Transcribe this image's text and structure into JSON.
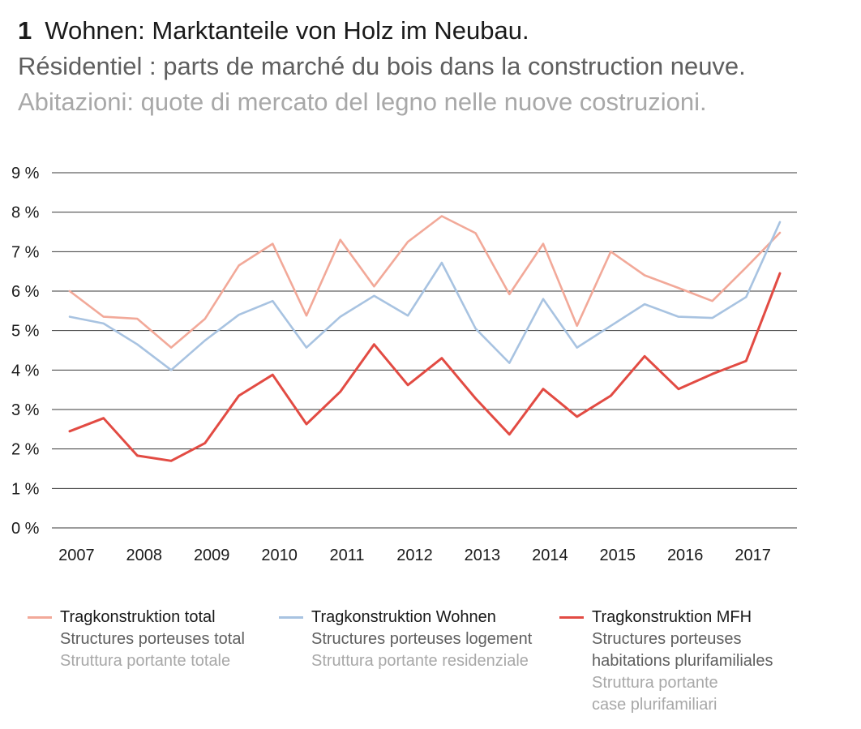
{
  "title": {
    "number": "1",
    "de": "Wohnen: Marktanteile von Holz im Neubau.",
    "fr": "Résidentiel : parts de marché du bois dans la construction neuve.",
    "it": "Abitazioni: quote di mercato del legno nelle nuove costruzioni."
  },
  "chart_data": {
    "type": "line",
    "ylim": [
      0,
      9
    ],
    "yticks": [
      "0 %",
      "1 %",
      "2 %",
      "3 %",
      "4 %",
      "5 %",
      "6 %",
      "7 %",
      "8 %",
      "9 %"
    ],
    "xticks": [
      "2007",
      "2008",
      "2009",
      "2010",
      "2011",
      "2012",
      "2013",
      "2014",
      "2015",
      "2016",
      "2017"
    ],
    "x": [
      2007.0,
      2007.5,
      2008.0,
      2008.5,
      2009.0,
      2009.5,
      2010.0,
      2010.5,
      2011.0,
      2011.5,
      2012.0,
      2012.5,
      2013.0,
      2013.5,
      2014.0,
      2014.5,
      2015.0,
      2015.5,
      2016.0,
      2016.5,
      2017.0,
      2017.5
    ],
    "series": [
      {
        "name": "Tragkonstruktion total",
        "color": "#f2a999",
        "values": [
          6.0,
          5.35,
          5.3,
          4.57,
          5.3,
          6.65,
          7.2,
          5.38,
          7.3,
          6.12,
          7.25,
          7.9,
          7.47,
          5.92,
          7.2,
          5.12,
          7.0,
          6.4,
          6.08,
          5.75,
          6.6,
          7.48
        ]
      },
      {
        "name": "Tragkonstruktion Wohnen",
        "color": "#a8c3e1",
        "values": [
          5.35,
          5.18,
          4.65,
          4.0,
          4.75,
          5.4,
          5.75,
          4.57,
          5.35,
          5.88,
          5.38,
          6.72,
          5.05,
          4.18,
          5.8,
          4.57,
          5.12,
          5.67,
          5.35,
          5.32,
          5.85,
          7.75
        ]
      },
      {
        "name": "Tragkonstruktion MFH",
        "color": "#e24b43",
        "values": [
          2.45,
          2.78,
          1.83,
          1.7,
          2.15,
          3.35,
          3.88,
          2.63,
          3.45,
          4.65,
          3.62,
          4.3,
          3.28,
          2.37,
          3.52,
          2.82,
          3.35,
          4.35,
          3.52,
          3.9,
          4.23,
          6.45
        ]
      }
    ]
  },
  "legend": [
    {
      "de": "Tragkonstruktion total",
      "fr": "Structures porteuses total",
      "it": "Struttura portante totale",
      "color": "#f2a999"
    },
    {
      "de": "Tragkonstruktion Wohnen",
      "fr": "Structures porteuses logement",
      "it": "Struttura portante residenziale",
      "color": "#a8c3e1"
    },
    {
      "de": "Tragkonstruktion MFH",
      "fr": "Structures porteuses\nhabitations plurifamiliales",
      "it": "Struttura portante\ncase plurifamiliari",
      "color": "#e24b43"
    }
  ]
}
